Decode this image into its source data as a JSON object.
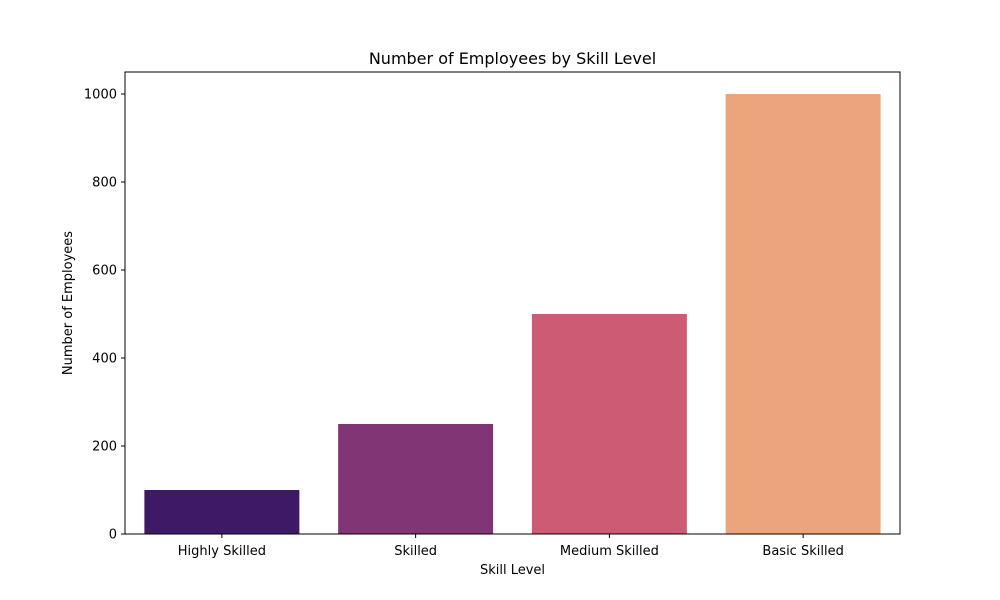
{
  "chart_data": {
    "type": "bar",
    "title": "Number of Employees by Skill Level",
    "xlabel": "Skill Level",
    "ylabel": "Number of Employees",
    "categories": [
      "Highly Skilled",
      "Skilled",
      "Medium Skilled",
      "Basic Skilled"
    ],
    "values": [
      100,
      250,
      500,
      1000
    ],
    "colors": [
      "#3e1a66",
      "#823574",
      "#cc5b73",
      "#eca47d"
    ],
    "ylim": [
      0,
      1050
    ],
    "yticks": [
      0,
      200,
      400,
      600,
      800,
      1000
    ],
    "grid": false,
    "legend": "none"
  }
}
